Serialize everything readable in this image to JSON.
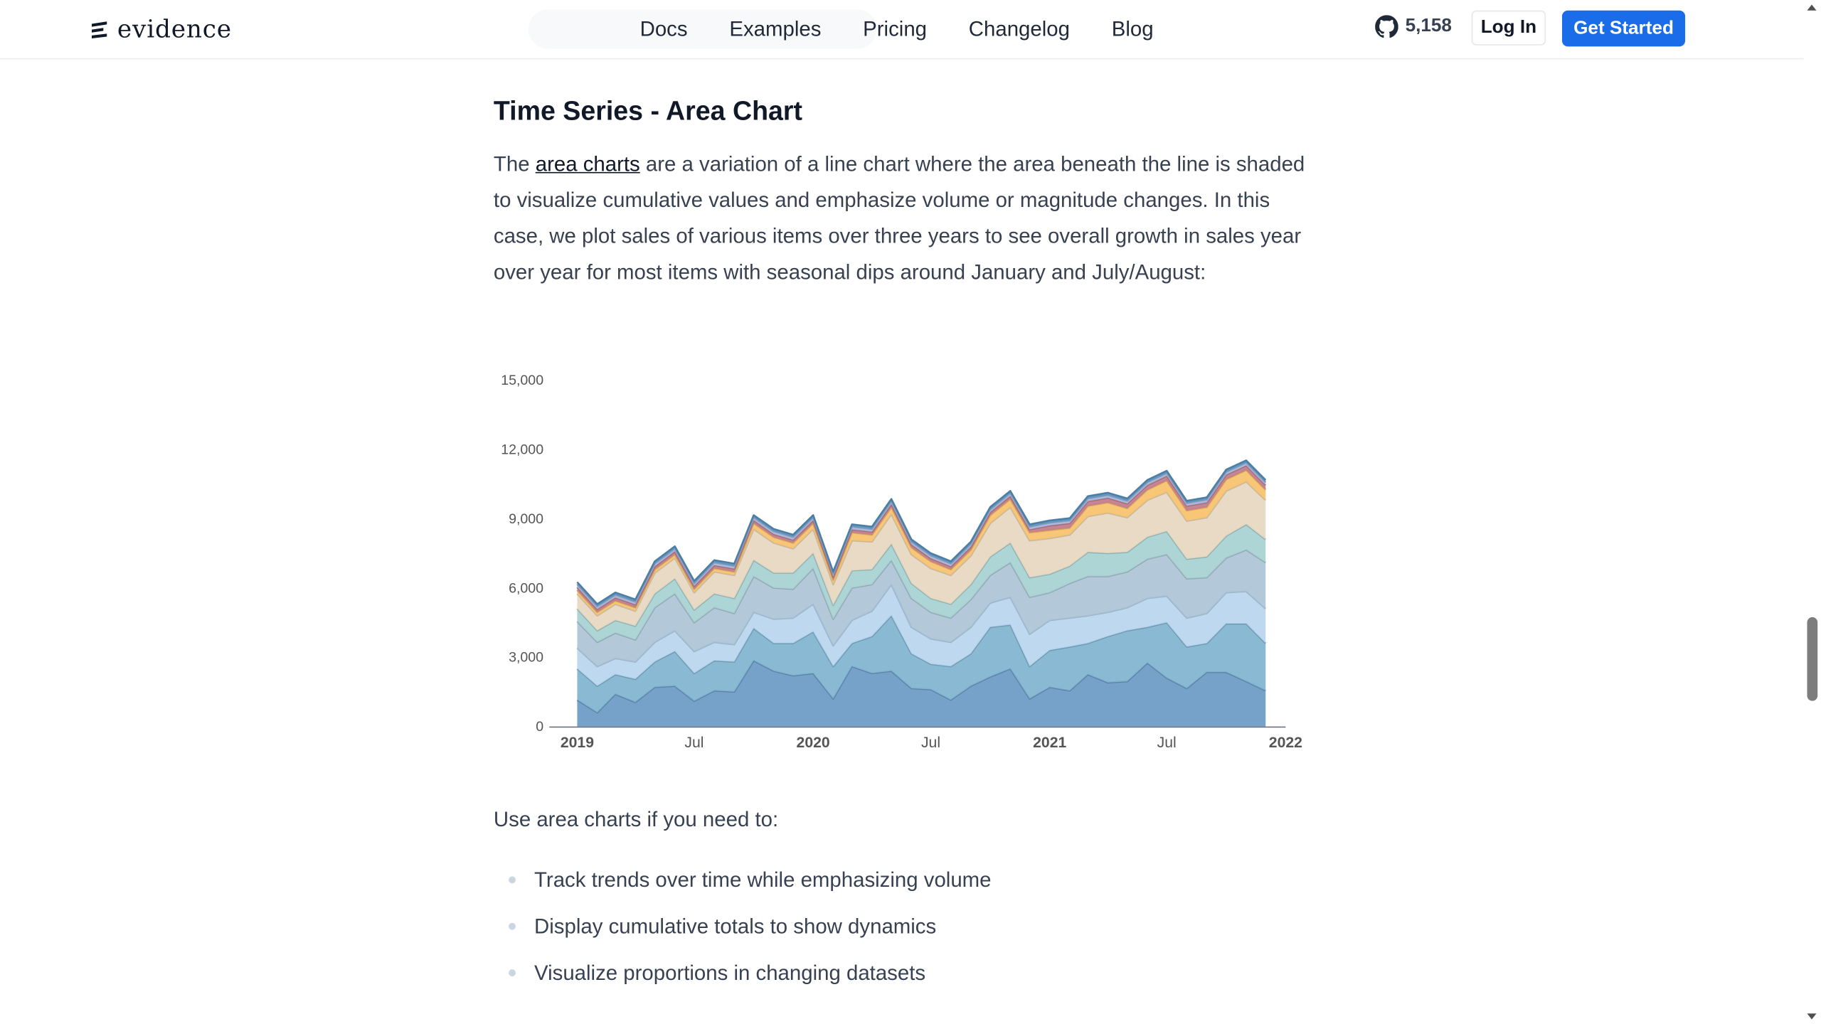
{
  "brand": {
    "name": "evidence"
  },
  "nav": [
    {
      "label": "Docs"
    },
    {
      "label": "Examples"
    },
    {
      "label": "Pricing"
    },
    {
      "label": "Changelog"
    },
    {
      "label": "Blog"
    }
  ],
  "github": {
    "stars": "5,158",
    "icon": "github-icon"
  },
  "buttons": {
    "login": "Log In",
    "get_started": "Get Started"
  },
  "colors": {
    "accent": "#1a6ce8"
  },
  "article": {
    "heading": "Time Series - Area Chart",
    "para_before_link": "The ",
    "link_text": "area charts",
    "para_after_link": " are a variation of a line chart where the area beneath the line is shaded to visualize cumulative values and emphasize volume or magnitude changes. In this case, we plot sales of various items over three years to see overall growth in sales year over year for most items with seasonal dips around January and July/August:",
    "lead": "Use area charts if you need to:",
    "bullets": [
      "Track trends over time while emphasizing volume",
      "Display cumulative totals to show dynamics",
      "Visualize proportions in changing datasets"
    ]
  },
  "chart_data": {
    "type": "area",
    "stacked": true,
    "ylim": [
      0,
      15000
    ],
    "yticks": [
      0,
      3000,
      6000,
      9000,
      12000,
      15000
    ],
    "ytick_labels": [
      "0",
      "3,000",
      "6,000",
      "9,000",
      "12,000",
      "15,000"
    ],
    "xlim": [
      "2019-01-01",
      "2022-01-01"
    ],
    "xticks": [
      {
        "date": "2019-01-01",
        "label": "2019",
        "bold": true
      },
      {
        "date": "2019-07-01",
        "label": "Jul",
        "bold": false
      },
      {
        "date": "2020-01-01",
        "label": "2020",
        "bold": true
      },
      {
        "date": "2020-07-01",
        "label": "Jul",
        "bold": false
      },
      {
        "date": "2021-01-01",
        "label": "2021",
        "bold": true
      },
      {
        "date": "2021-07-01",
        "label": "Jul",
        "bold": false
      },
      {
        "date": "2022-01-01",
        "label": "2022",
        "bold": true
      }
    ],
    "x": [
      "2019-01",
      "2019-02",
      "2019-03",
      "2019-04",
      "2019-05",
      "2019-06",
      "2019-07",
      "2019-08",
      "2019-09",
      "2019-10",
      "2019-11",
      "2019-12",
      "2020-01",
      "2020-02",
      "2020-03",
      "2020-04",
      "2020-05",
      "2020-06",
      "2020-07",
      "2020-08",
      "2020-09",
      "2020-10",
      "2020-11",
      "2020-12",
      "2021-01",
      "2021-02",
      "2021-03",
      "2021-04",
      "2021-05",
      "2021-06",
      "2021-07",
      "2021-08",
      "2021-09",
      "2021-10",
      "2021-11",
      "2021-12"
    ],
    "series": [
      {
        "color": "#6a9ac4",
        "values": [
          1150,
          600,
          1400,
          1050,
          1700,
          1750,
          1100,
          1550,
          1500,
          2850,
          2400,
          2200,
          2300,
          1200,
          2600,
          2300,
          2400,
          1650,
          1600,
          1150,
          1750,
          2150,
          2500,
          1200,
          1700,
          1550,
          2250,
          1900,
          1950,
          2750,
          2100,
          1650,
          2350,
          2350,
          1950,
          1550
        ]
      },
      {
        "color": "#80b4cf",
        "values": [
          1350,
          1150,
          850,
          1000,
          1100,
          1500,
          1200,
          1300,
          1300,
          1400,
          1200,
          1400,
          1800,
          1400,
          1000,
          1600,
          2400,
          1500,
          1100,
          1450,
          1400,
          2150,
          1900,
          1400,
          1600,
          1900,
          1350,
          2000,
          2200,
          1550,
          2400,
          1800,
          1250,
          2100,
          2500,
          2050
        ]
      },
      {
        "color": "#b7d5ee",
        "values": [
          900,
          850,
          700,
          750,
          850,
          900,
          950,
          800,
          750,
          700,
          1050,
          1100,
          1200,
          900,
          1000,
          1100,
          1350,
          1150,
          1100,
          1050,
          1150,
          1050,
          1200,
          1400,
          1300,
          1250,
          1200,
          1050,
          1000,
          1250,
          1150,
          1250,
          1300,
          1350,
          1400,
          1500
        ]
      },
      {
        "color": "#adc4d6",
        "values": [
          1150,
          1050,
          1100,
          950,
          1500,
          1600,
          1250,
          1500,
          1350,
          1550,
          1350,
          1250,
          1550,
          1150,
          1400,
          1150,
          1050,
          1250,
          1150,
          1050,
          1200,
          1200,
          1500,
          1600,
          1200,
          1500,
          1700,
          1550,
          1550,
          1700,
          1800,
          1700,
          1550,
          1500,
          1800,
          2000
        ]
      },
      {
        "color": "#a7d1d1",
        "values": [
          550,
          500,
          550,
          600,
          600,
          650,
          550,
          600,
          650,
          700,
          650,
          700,
          650,
          600,
          750,
          650,
          700,
          650,
          600,
          600,
          650,
          800,
          850,
          850,
          800,
          750,
          1050,
          1000,
          850,
          950,
          1000,
          850,
          900,
          950,
          1100,
          1000
        ]
      },
      {
        "color": "#e6d7bf",
        "values": [
          650,
          650,
          700,
          650,
          900,
          900,
          750,
          950,
          1000,
          1350,
          1300,
          1050,
          1050,
          900,
          1300,
          1200,
          1300,
          1250,
          1300,
          1250,
          1250,
          1450,
          1550,
          1600,
          1550,
          1350,
          1550,
          1750,
          1500,
          1600,
          1700,
          1650,
          1700,
          1950,
          1850,
          1700
        ]
      },
      {
        "color": "#f7c16b",
        "values": [
          150,
          150,
          150,
          150,
          150,
          150,
          150,
          150,
          150,
          250,
          250,
          250,
          250,
          200,
          350,
          300,
          300,
          300,
          300,
          250,
          250,
          350,
          350,
          350,
          350,
          300,
          450,
          450,
          400,
          450,
          500,
          450,
          450,
          500,
          500,
          450
        ]
      },
      {
        "color": "#c17b8c",
        "values": [
          130,
          130,
          130,
          130,
          130,
          130,
          130,
          130,
          130,
          130,
          130,
          130,
          130,
          130,
          130,
          130,
          130,
          130,
          130,
          130,
          130,
          130,
          130,
          130,
          200,
          200,
          200,
          200,
          200,
          200,
          200,
          200,
          200,
          200,
          200,
          200
        ]
      },
      {
        "color": "#a7b9da",
        "values": [
          120,
          120,
          120,
          120,
          120,
          120,
          120,
          120,
          120,
          120,
          120,
          120,
          120,
          120,
          120,
          120,
          120,
          120,
          120,
          120,
          120,
          120,
          120,
          120,
          120,
          120,
          120,
          120,
          120,
          120,
          120,
          120,
          120,
          120,
          120,
          120
        ]
      },
      {
        "color": "#5b95c3",
        "values": [
          100,
          100,
          100,
          100,
          100,
          100,
          100,
          100,
          100,
          100,
          100,
          100,
          100,
          100,
          100,
          100,
          100,
          100,
          100,
          100,
          100,
          100,
          100,
          100,
          100,
          100,
          100,
          100,
          100,
          100,
          100,
          100,
          100,
          100,
          100,
          100
        ]
      }
    ]
  }
}
